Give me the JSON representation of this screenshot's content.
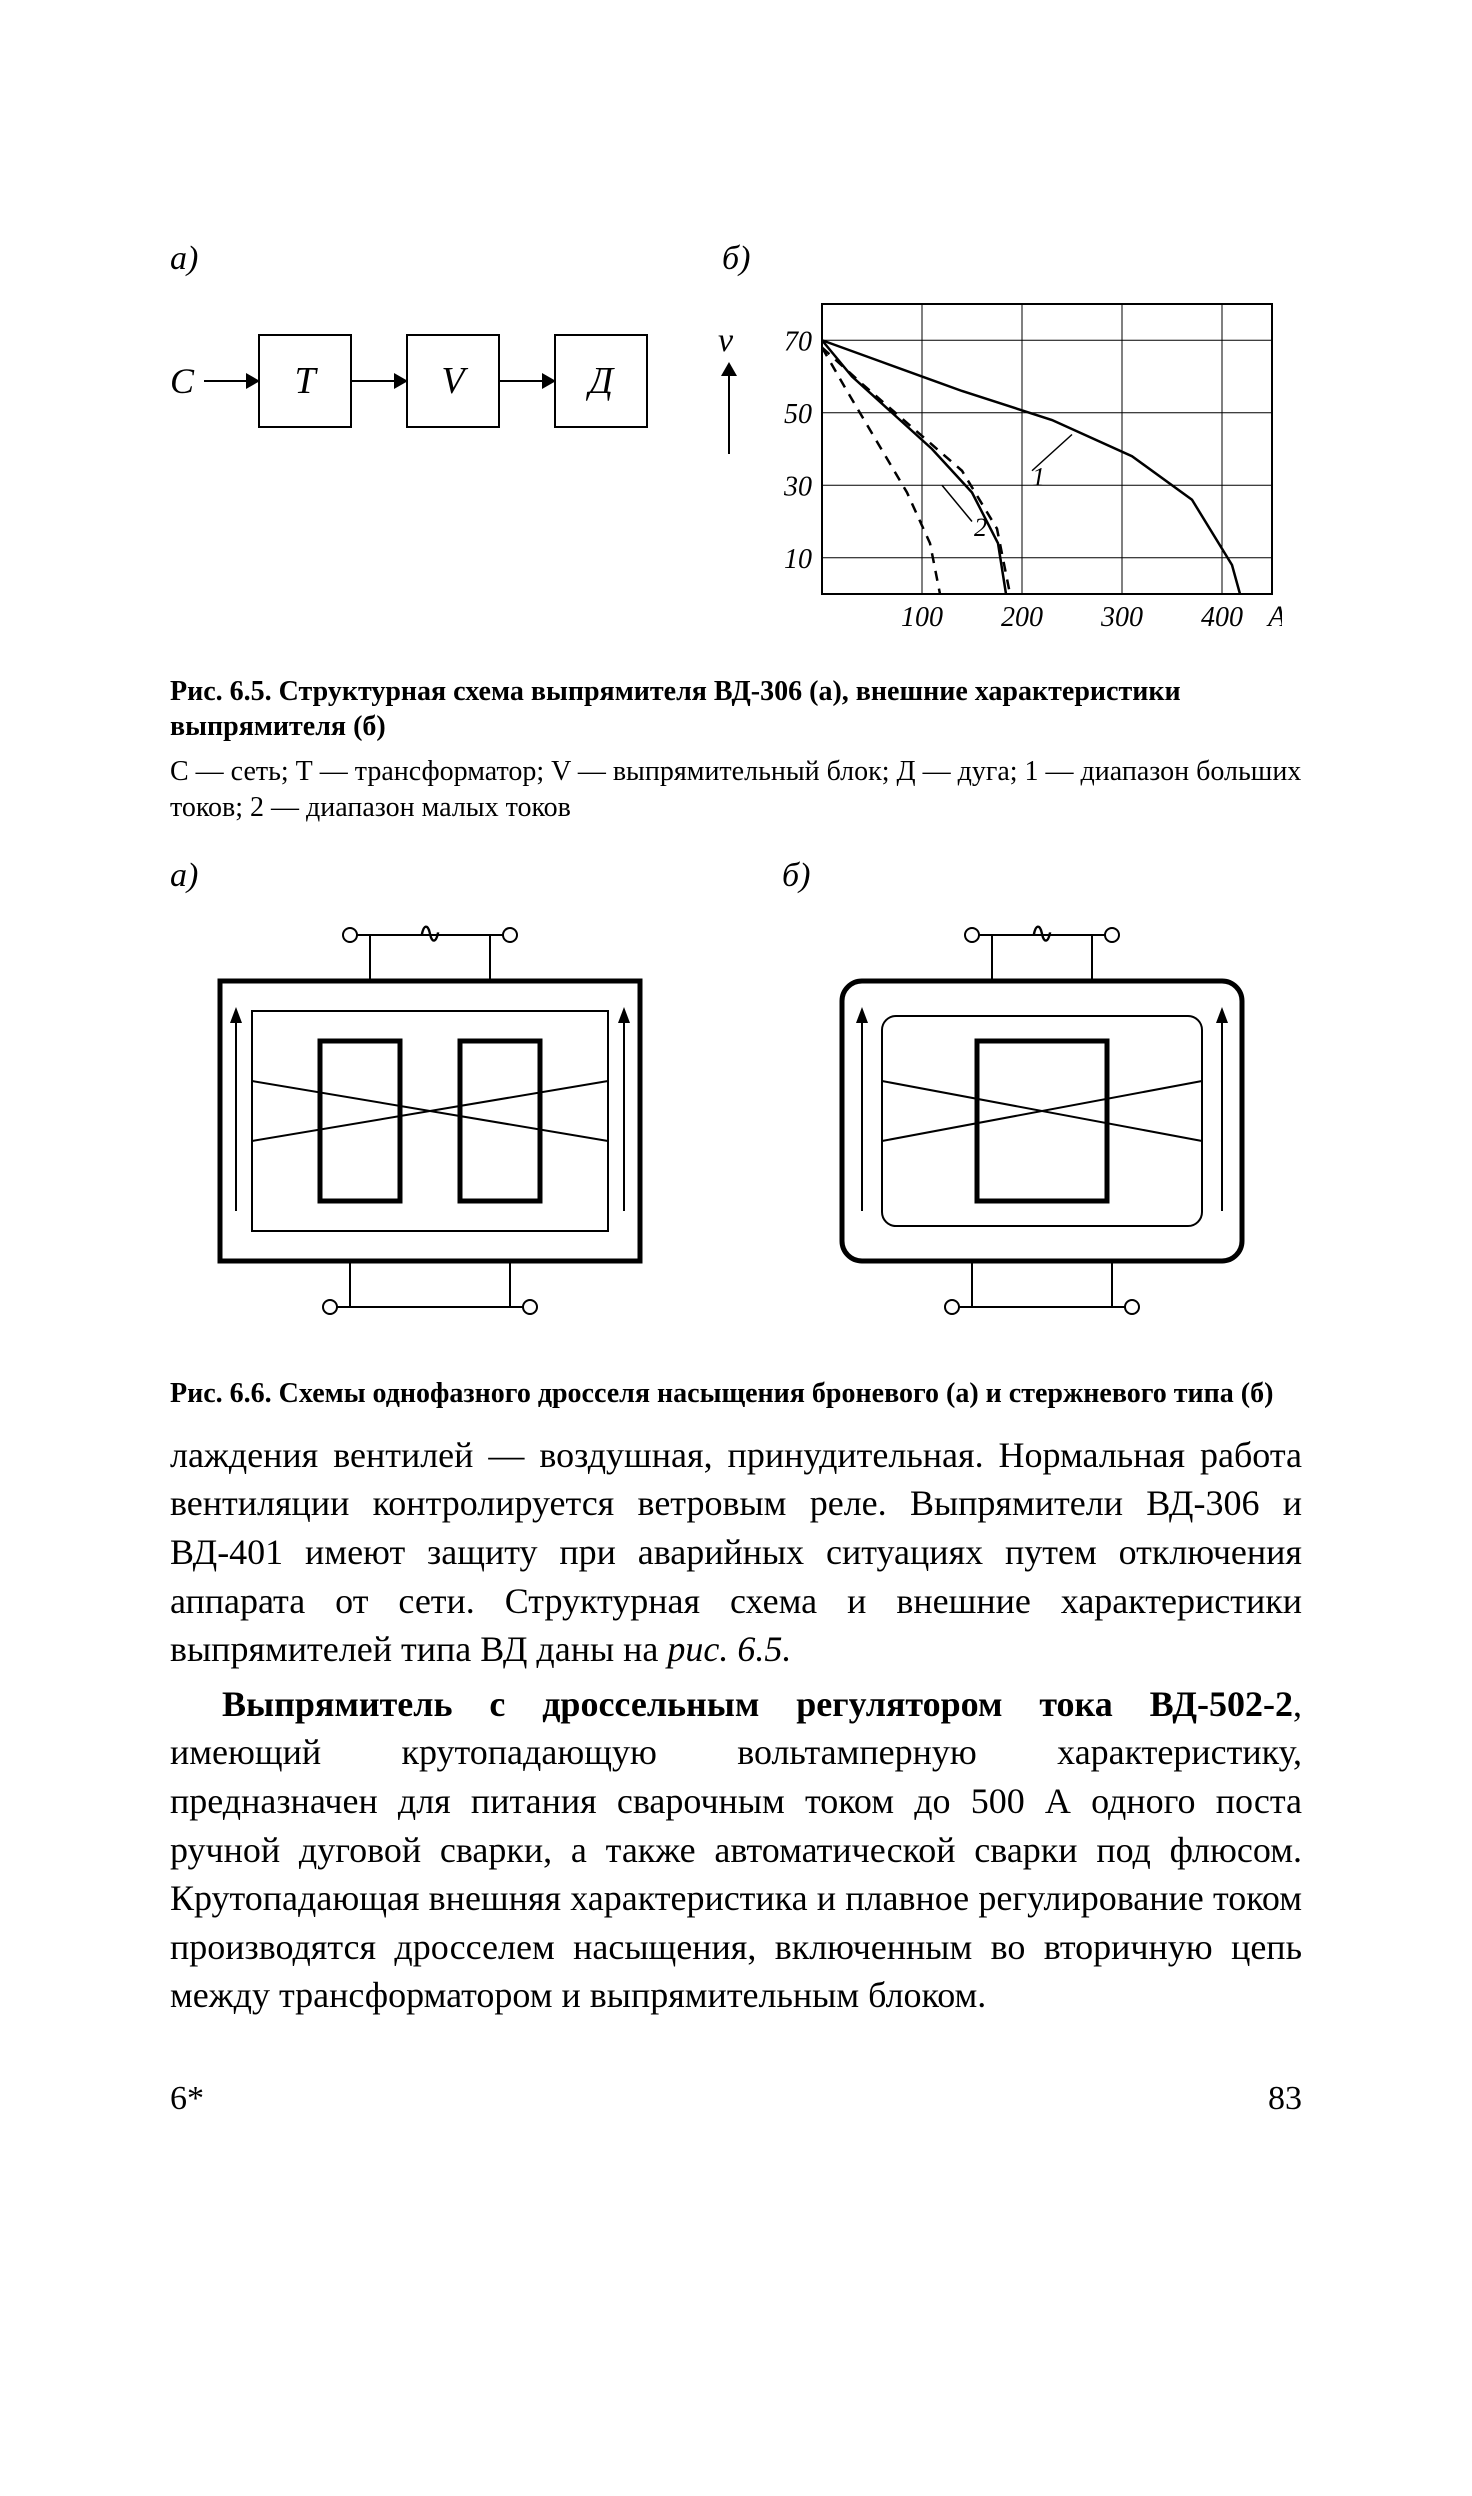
{
  "figure65": {
    "label_a": "а)",
    "label_b": "б)",
    "input_letter": "С",
    "blocks": [
      "Т",
      "V",
      "Д"
    ],
    "chart": {
      "type": "line",
      "y_label": "v",
      "y_ticks": [
        10,
        30,
        50,
        70
      ],
      "x_ticks": [
        100,
        200,
        300,
        400
      ],
      "x_unit": "А",
      "xlim": [
        0,
        450
      ],
      "ylim": [
        0,
        80
      ],
      "grid_color": "#000000",
      "line_color": "#000000",
      "curve1_solid": [
        [
          0,
          70
        ],
        [
          60,
          64
        ],
        [
          140,
          56
        ],
        [
          230,
          48
        ],
        [
          310,
          38
        ],
        [
          370,
          26
        ],
        [
          410,
          8
        ],
        [
          418,
          0
        ]
      ],
      "curve2_solid": [
        [
          0,
          70
        ],
        [
          30,
          60
        ],
        [
          70,
          50
        ],
        [
          110,
          40
        ],
        [
          150,
          28
        ],
        [
          176,
          14
        ],
        [
          184,
          0
        ]
      ],
      "curve1_dash": [
        [
          0,
          68
        ],
        [
          40,
          58
        ],
        [
          90,
          46
        ],
        [
          140,
          34
        ],
        [
          175,
          18
        ],
        [
          188,
          0
        ]
      ],
      "curve2_dash": [
        [
          0,
          68
        ],
        [
          25,
          56
        ],
        [
          55,
          42
        ],
        [
          85,
          28
        ],
        [
          108,
          14
        ],
        [
          118,
          0
        ]
      ],
      "annot_1": "1",
      "annot_2": "2"
    },
    "caption_bold": "Рис. 6.5. Структурная схема выпрямителя ВД-306 (а), внешние характеристики выпрямителя (б)",
    "legend": "С — сеть;  Т — трансформатор;   V — выпрямительный блок;  Д — дуга;  1 — диапазон больших токов;  2 — диапазон малых токов"
  },
  "figure66": {
    "label_a": "а)",
    "label_b": "б)",
    "ac_symbol": "∿",
    "caption_bold": "Рис. 6.6. Схемы однофазного дросселя насыщения броневого (а) и стержневого типа (б)"
  },
  "body": {
    "p1": "лаждения вентилей — воздушная, принудительная. Нормальная работа вентиляции контролируется ветровым реле. Выпрямители ВД-306 и ВД-401 имеют защиту при аварийных ситуациях путем отключения аппарата от сети. Структурная схема и внешние характеристики выпрямителей типа ВД даны на ",
    "p1_ital": "рис. 6.5.",
    "p2_lead": "Выпрямитель с дроссельным регулятором тока ВД-502-2",
    "p2_rest": ", имеющий крутопадающую вольтамперную характеристику, предназначен для питания сварочным током до 500 А одного поста ручной дуговой сварки, а также автоматической сварки под флюсом. Крутопадающая внешняя характеристика и плавное регулирование током производятся дросселем насыщения, включенным во вторичную цепь между трансформатором и выпрямительным блоком."
  },
  "footer": {
    "sig": "6*",
    "page": "83"
  },
  "colors": {
    "ink": "#000000",
    "paper": "#ffffff"
  }
}
